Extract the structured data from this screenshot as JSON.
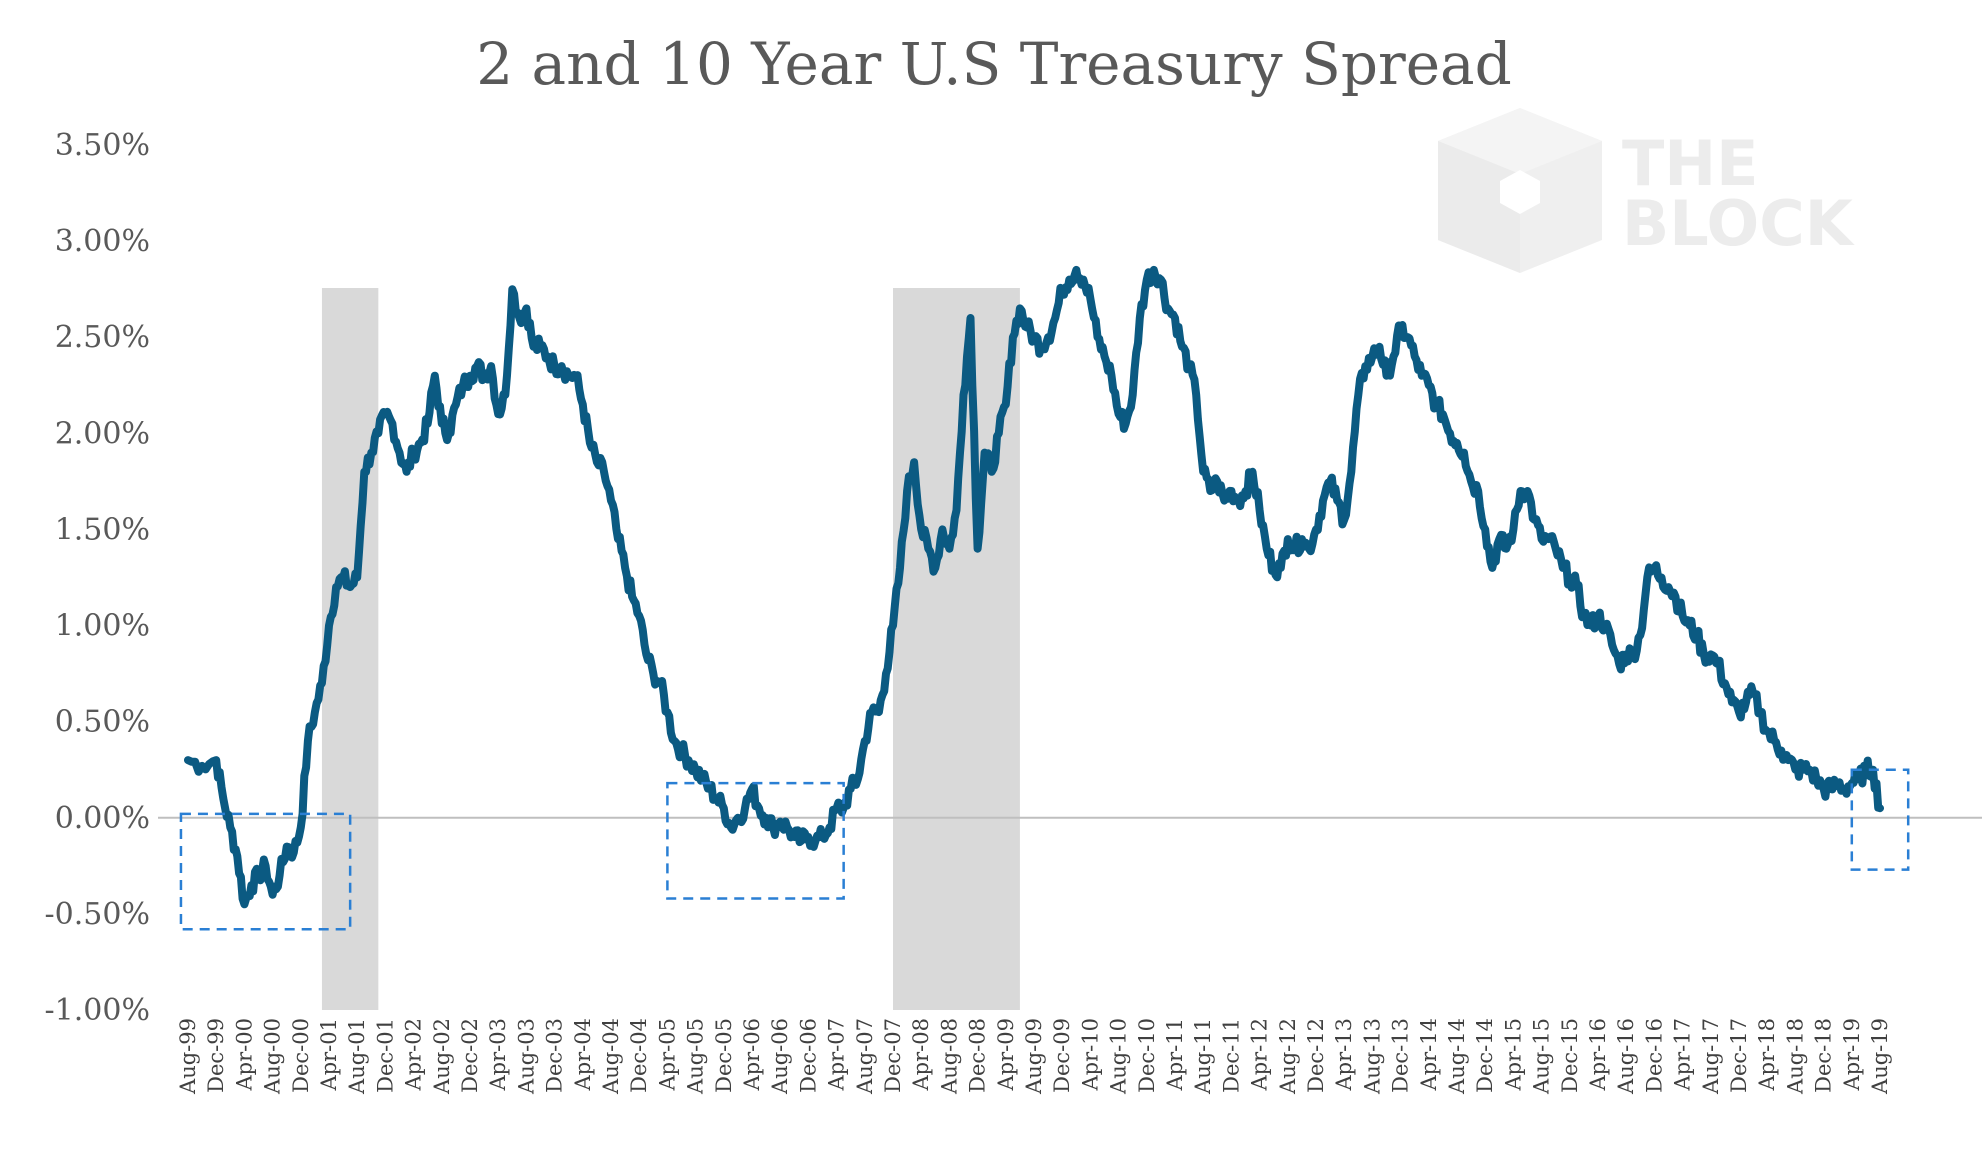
{
  "chart_data": {
    "type": "line",
    "title": "2 and 10 Year U.S Treasury Spread",
    "xlabel": "",
    "ylabel": "",
    "ylim": [
      -1.0,
      3.5
    ],
    "y_ticks": [
      "3.50%",
      "3.00%",
      "2.50%",
      "2.00%",
      "1.50%",
      "1.00%",
      "0.50%",
      "0.00%",
      "-0.50%",
      "-1.00%"
    ],
    "x_ticks": [
      "Aug-99",
      "Dec-99",
      "Apr-00",
      "Aug-00",
      "Dec-00",
      "Apr-01",
      "Aug-01",
      "Dec-01",
      "Apr-02",
      "Aug-02",
      "Dec-02",
      "Apr-03",
      "Aug-03",
      "Dec-03",
      "Apr-04",
      "Aug-04",
      "Dec-04",
      "Apr-05",
      "Aug-05",
      "Dec-05",
      "Apr-06",
      "Aug-06",
      "Dec-06",
      "Apr-07",
      "Aug-07",
      "Dec-07",
      "Apr-08",
      "Aug-08",
      "Dec-08",
      "Apr-09",
      "Aug-09",
      "Dec-09",
      "Apr-10",
      "Aug-10",
      "Dec-10",
      "Apr-11",
      "Aug-11",
      "Dec-11",
      "Apr-12",
      "Aug-12",
      "Dec-12",
      "Apr-13",
      "Aug-13",
      "Dec-13",
      "Apr-14",
      "Aug-14",
      "Dec-14",
      "Apr-15",
      "Aug-15",
      "Dec-15",
      "Apr-16",
      "Aug-16",
      "Dec-16",
      "Apr-17",
      "Aug-17",
      "Dec-17",
      "Apr-18",
      "Aug-18",
      "Dec-18",
      "Apr-19",
      "Aug-19"
    ],
    "grid": false,
    "series": [
      {
        "color": "#0b5a82",
        "points": [
          [
            "Aug-99",
            0.3
          ],
          [
            "Oct-99",
            0.27
          ],
          [
            "Dec-99",
            0.3
          ],
          [
            "Jan-00",
            0.1
          ],
          [
            "Feb-00",
            -0.05
          ],
          [
            "Mar-00",
            -0.2
          ],
          [
            "Apr-00",
            -0.45
          ],
          [
            "May-00",
            -0.35
          ],
          [
            "Jun-00",
            -0.3
          ],
          [
            "Jul-00",
            -0.25
          ],
          [
            "Aug-00",
            -0.4
          ],
          [
            "Sep-00",
            -0.3
          ],
          [
            "Oct-00",
            -0.15
          ],
          [
            "Nov-00",
            -0.18
          ],
          [
            "Dec-00",
            -0.05
          ],
          [
            "Jan-01",
            0.4
          ],
          [
            "Feb-01",
            0.55
          ],
          [
            "Mar-01",
            0.7
          ],
          [
            "Apr-01",
            1.0
          ],
          [
            "May-01",
            1.2
          ],
          [
            "Jun-01",
            1.25
          ],
          [
            "Jul-01",
            1.2
          ],
          [
            "Aug-01",
            1.25
          ],
          [
            "Sep-01",
            1.8
          ],
          [
            "Oct-01",
            1.9
          ],
          [
            "Nov-01",
            2.0
          ],
          [
            "Dec-01",
            2.1
          ],
          [
            "Jan-02",
            2.05
          ],
          [
            "Feb-02",
            1.9
          ],
          [
            "Mar-02",
            1.8
          ],
          [
            "Apr-02",
            1.9
          ],
          [
            "May-02",
            1.95
          ],
          [
            "Jun-02",
            2.05
          ],
          [
            "Jul-02",
            2.3
          ],
          [
            "Aug-02",
            2.05
          ],
          [
            "Sep-02",
            2.0
          ],
          [
            "Oct-02",
            2.15
          ],
          [
            "Nov-02",
            2.25
          ],
          [
            "Dec-02",
            2.3
          ],
          [
            "Jan-03",
            2.35
          ],
          [
            "Feb-03",
            2.3
          ],
          [
            "Mar-03",
            2.35
          ],
          [
            "Apr-03",
            2.1
          ],
          [
            "May-03",
            2.2
          ],
          [
            "Jun-03",
            2.75
          ],
          [
            "Jul-03",
            2.6
          ],
          [
            "Aug-03",
            2.65
          ],
          [
            "Sep-03",
            2.45
          ],
          [
            "Oct-03",
            2.45
          ],
          [
            "Nov-03",
            2.4
          ],
          [
            "Dec-03",
            2.35
          ],
          [
            "Jan-04",
            2.35
          ],
          [
            "Feb-04",
            2.3
          ],
          [
            "Mar-04",
            2.3
          ],
          [
            "Apr-04",
            2.15
          ],
          [
            "May-04",
            1.95
          ],
          [
            "Jun-04",
            1.85
          ],
          [
            "Jul-04",
            1.8
          ],
          [
            "Aug-04",
            1.65
          ],
          [
            "Sep-04",
            1.45
          ],
          [
            "Oct-04",
            1.3
          ],
          [
            "Nov-04",
            1.15
          ],
          [
            "Dec-04",
            1.05
          ],
          [
            "Jan-05",
            0.85
          ],
          [
            "Feb-05",
            0.75
          ],
          [
            "Mar-05",
            0.7
          ],
          [
            "Apr-05",
            0.55
          ],
          [
            "May-05",
            0.4
          ],
          [
            "Jun-05",
            0.35
          ],
          [
            "Jul-05",
            0.3
          ],
          [
            "Aug-05",
            0.25
          ],
          [
            "Sep-05",
            0.2
          ],
          [
            "Oct-05",
            0.15
          ],
          [
            "Nov-05",
            0.1
          ],
          [
            "Dec-05",
            0.05
          ],
          [
            "Jan-06",
            -0.05
          ],
          [
            "Feb-06",
            0.0
          ],
          [
            "Mar-06",
            0.05
          ],
          [
            "Apr-06",
            0.15
          ],
          [
            "May-06",
            0.05
          ],
          [
            "Jun-06",
            0.0
          ],
          [
            "Jul-06",
            -0.05
          ],
          [
            "Aug-06",
            -0.02
          ],
          [
            "Sep-06",
            -0.05
          ],
          [
            "Oct-06",
            -0.1
          ],
          [
            "Nov-06",
            -0.12
          ],
          [
            "Dec-06",
            -0.1
          ],
          [
            "Jan-07",
            -0.12
          ],
          [
            "Feb-07",
            -0.1
          ],
          [
            "Mar-07",
            -0.05
          ],
          [
            "Apr-07",
            0.05
          ],
          [
            "May-07",
            0.05
          ],
          [
            "Jun-07",
            0.15
          ],
          [
            "Jul-07",
            0.2
          ],
          [
            "Aug-07",
            0.4
          ],
          [
            "Sep-07",
            0.55
          ],
          [
            "Oct-07",
            0.55
          ],
          [
            "Nov-07",
            0.75
          ],
          [
            "Dec-07",
            1.0
          ],
          [
            "Jan-08",
            1.3
          ],
          [
            "Feb-08",
            1.7
          ],
          [
            "Mar-08",
            1.85
          ],
          [
            "Apr-08",
            1.5
          ],
          [
            "May-08",
            1.4
          ],
          [
            "Jun-08",
            1.3
          ],
          [
            "Jul-08",
            1.5
          ],
          [
            "Aug-08",
            1.4
          ],
          [
            "Sep-08",
            1.6
          ],
          [
            "Oct-08",
            2.2
          ],
          [
            "Nov-08",
            2.6
          ],
          [
            "Dec-08",
            1.4
          ],
          [
            "Jan-09",
            1.9
          ],
          [
            "Feb-09",
            1.8
          ],
          [
            "Mar-09",
            2.0
          ],
          [
            "Apr-09",
            2.15
          ],
          [
            "May-09",
            2.5
          ],
          [
            "Jun-09",
            2.65
          ],
          [
            "Jul-09",
            2.55
          ],
          [
            "Aug-09",
            2.5
          ],
          [
            "Sep-09",
            2.45
          ],
          [
            "Oct-09",
            2.5
          ],
          [
            "Nov-09",
            2.6
          ],
          [
            "Dec-09",
            2.75
          ],
          [
            "Jan-10",
            2.8
          ],
          [
            "Feb-10",
            2.85
          ],
          [
            "Mar-10",
            2.8
          ],
          [
            "Apr-10",
            2.7
          ],
          [
            "May-10",
            2.5
          ],
          [
            "Jun-10",
            2.4
          ],
          [
            "Jul-10",
            2.3
          ],
          [
            "Aug-10",
            2.1
          ],
          [
            "Sep-10",
            2.05
          ],
          [
            "Oct-10",
            2.2
          ],
          [
            "Nov-10",
            2.6
          ],
          [
            "Dec-10",
            2.8
          ],
          [
            "Jan-11",
            2.85
          ],
          [
            "Feb-11",
            2.8
          ],
          [
            "Mar-11",
            2.65
          ],
          [
            "Apr-11",
            2.6
          ],
          [
            "May-11",
            2.45
          ],
          [
            "Jun-11",
            2.35
          ],
          [
            "Jul-11",
            2.2
          ],
          [
            "Aug-11",
            1.8
          ],
          [
            "Sep-11",
            1.7
          ],
          [
            "Oct-11",
            1.75
          ],
          [
            "Nov-11",
            1.65
          ],
          [
            "Dec-11",
            1.7
          ],
          [
            "Jan-12",
            1.65
          ],
          [
            "Feb-12",
            1.7
          ],
          [
            "Mar-12",
            1.8
          ],
          [
            "Apr-12",
            1.6
          ],
          [
            "May-12",
            1.4
          ],
          [
            "Jun-12",
            1.3
          ],
          [
            "Jul-12",
            1.3
          ],
          [
            "Aug-12",
            1.45
          ],
          [
            "Sep-12",
            1.4
          ],
          [
            "Oct-12",
            1.45
          ],
          [
            "Nov-12",
            1.4
          ],
          [
            "Dec-12",
            1.5
          ],
          [
            "Jan-13",
            1.65
          ],
          [
            "Feb-13",
            1.75
          ],
          [
            "Mar-13",
            1.65
          ],
          [
            "Apr-13",
            1.55
          ],
          [
            "May-13",
            1.8
          ],
          [
            "Jun-13",
            2.2
          ],
          [
            "Jul-13",
            2.35
          ],
          [
            "Aug-13",
            2.4
          ],
          [
            "Sep-13",
            2.45
          ],
          [
            "Oct-13",
            2.3
          ],
          [
            "Nov-13",
            2.4
          ],
          [
            "Dec-13",
            2.55
          ],
          [
            "Jan-14",
            2.5
          ],
          [
            "Feb-14",
            2.4
          ],
          [
            "Mar-14",
            2.3
          ],
          [
            "Apr-14",
            2.25
          ],
          [
            "May-14",
            2.15
          ],
          [
            "Jun-14",
            2.1
          ],
          [
            "Jul-14",
            2.0
          ],
          [
            "Aug-14",
            1.95
          ],
          [
            "Sep-14",
            1.9
          ],
          [
            "Oct-14",
            1.75
          ],
          [
            "Nov-14",
            1.7
          ],
          [
            "Dec-14",
            1.5
          ],
          [
            "Jan-15",
            1.3
          ],
          [
            "Feb-15",
            1.45
          ],
          [
            "Mar-15",
            1.4
          ],
          [
            "Apr-15",
            1.5
          ],
          [
            "May-15",
            1.7
          ],
          [
            "Jun-15",
            1.7
          ],
          [
            "Jul-15",
            1.55
          ],
          [
            "Aug-15",
            1.45
          ],
          [
            "Sep-15",
            1.45
          ],
          [
            "Oct-15",
            1.4
          ],
          [
            "Nov-15",
            1.3
          ],
          [
            "Dec-15",
            1.25
          ],
          [
            "Jan-16",
            1.2
          ],
          [
            "Feb-16",
            1.05
          ],
          [
            "Mar-16",
            1.0
          ],
          [
            "Apr-16",
            1.05
          ],
          [
            "May-16",
            1.0
          ],
          [
            "Jun-16",
            0.9
          ],
          [
            "Jul-16",
            0.8
          ],
          [
            "Aug-16",
            0.85
          ],
          [
            "Sep-16",
            0.85
          ],
          [
            "Oct-16",
            0.95
          ],
          [
            "Nov-16",
            1.25
          ],
          [
            "Dec-16",
            1.3
          ],
          [
            "Jan-17",
            1.25
          ],
          [
            "Feb-17",
            1.2
          ],
          [
            "Mar-17",
            1.15
          ],
          [
            "Apr-17",
            1.05
          ],
          [
            "May-17",
            1.0
          ],
          [
            "Jun-17",
            0.95
          ],
          [
            "Jul-17",
            0.85
          ],
          [
            "Aug-17",
            0.85
          ],
          [
            "Sep-17",
            0.8
          ],
          [
            "Oct-17",
            0.7
          ],
          [
            "Nov-17",
            0.6
          ],
          [
            "Dec-17",
            0.55
          ],
          [
            "Jan-18",
            0.6
          ],
          [
            "Feb-18",
            0.65
          ],
          [
            "Mar-18",
            0.55
          ],
          [
            "Apr-18",
            0.45
          ],
          [
            "May-18",
            0.4
          ],
          [
            "Jun-18",
            0.35
          ],
          [
            "Jul-18",
            0.3
          ],
          [
            "Aug-18",
            0.25
          ],
          [
            "Sep-18",
            0.25
          ],
          [
            "Oct-18",
            0.25
          ],
          [
            "Nov-18",
            0.2
          ],
          [
            "Dec-18",
            0.15
          ],
          [
            "Jan-19",
            0.15
          ],
          [
            "Feb-19",
            0.18
          ],
          [
            "Mar-19",
            0.15
          ],
          [
            "Apr-19",
            0.18
          ],
          [
            "May-19",
            0.2
          ],
          [
            "Jun-19",
            0.25
          ],
          [
            "Jul-19",
            0.25
          ],
          [
            "Aug-19",
            0.05
          ]
        ]
      }
    ],
    "recession_shading": [
      [
        "Mar-01",
        "Nov-01"
      ],
      [
        "Dec-07",
        "Jun-09"
      ]
    ],
    "highlight_boxes": [
      [
        "Jul-99",
        "Jul-01",
        0.02,
        -0.58
      ],
      [
        "Apr-05",
        "May-07",
        0.18,
        -0.42
      ],
      [
        "Apr-19",
        "Dec-19",
        0.25,
        -0.27
      ]
    ],
    "colors": {
      "line": "#0b5a82",
      "recession": "#d9d9d9",
      "box": "#2a7fd4",
      "zero_line": "#bfbfbf",
      "text": "#595959",
      "watermark": "#ececec"
    },
    "watermark": {
      "icon": "cube-logo-icon",
      "line1": "THE",
      "line2": "BLOCK"
    }
  }
}
